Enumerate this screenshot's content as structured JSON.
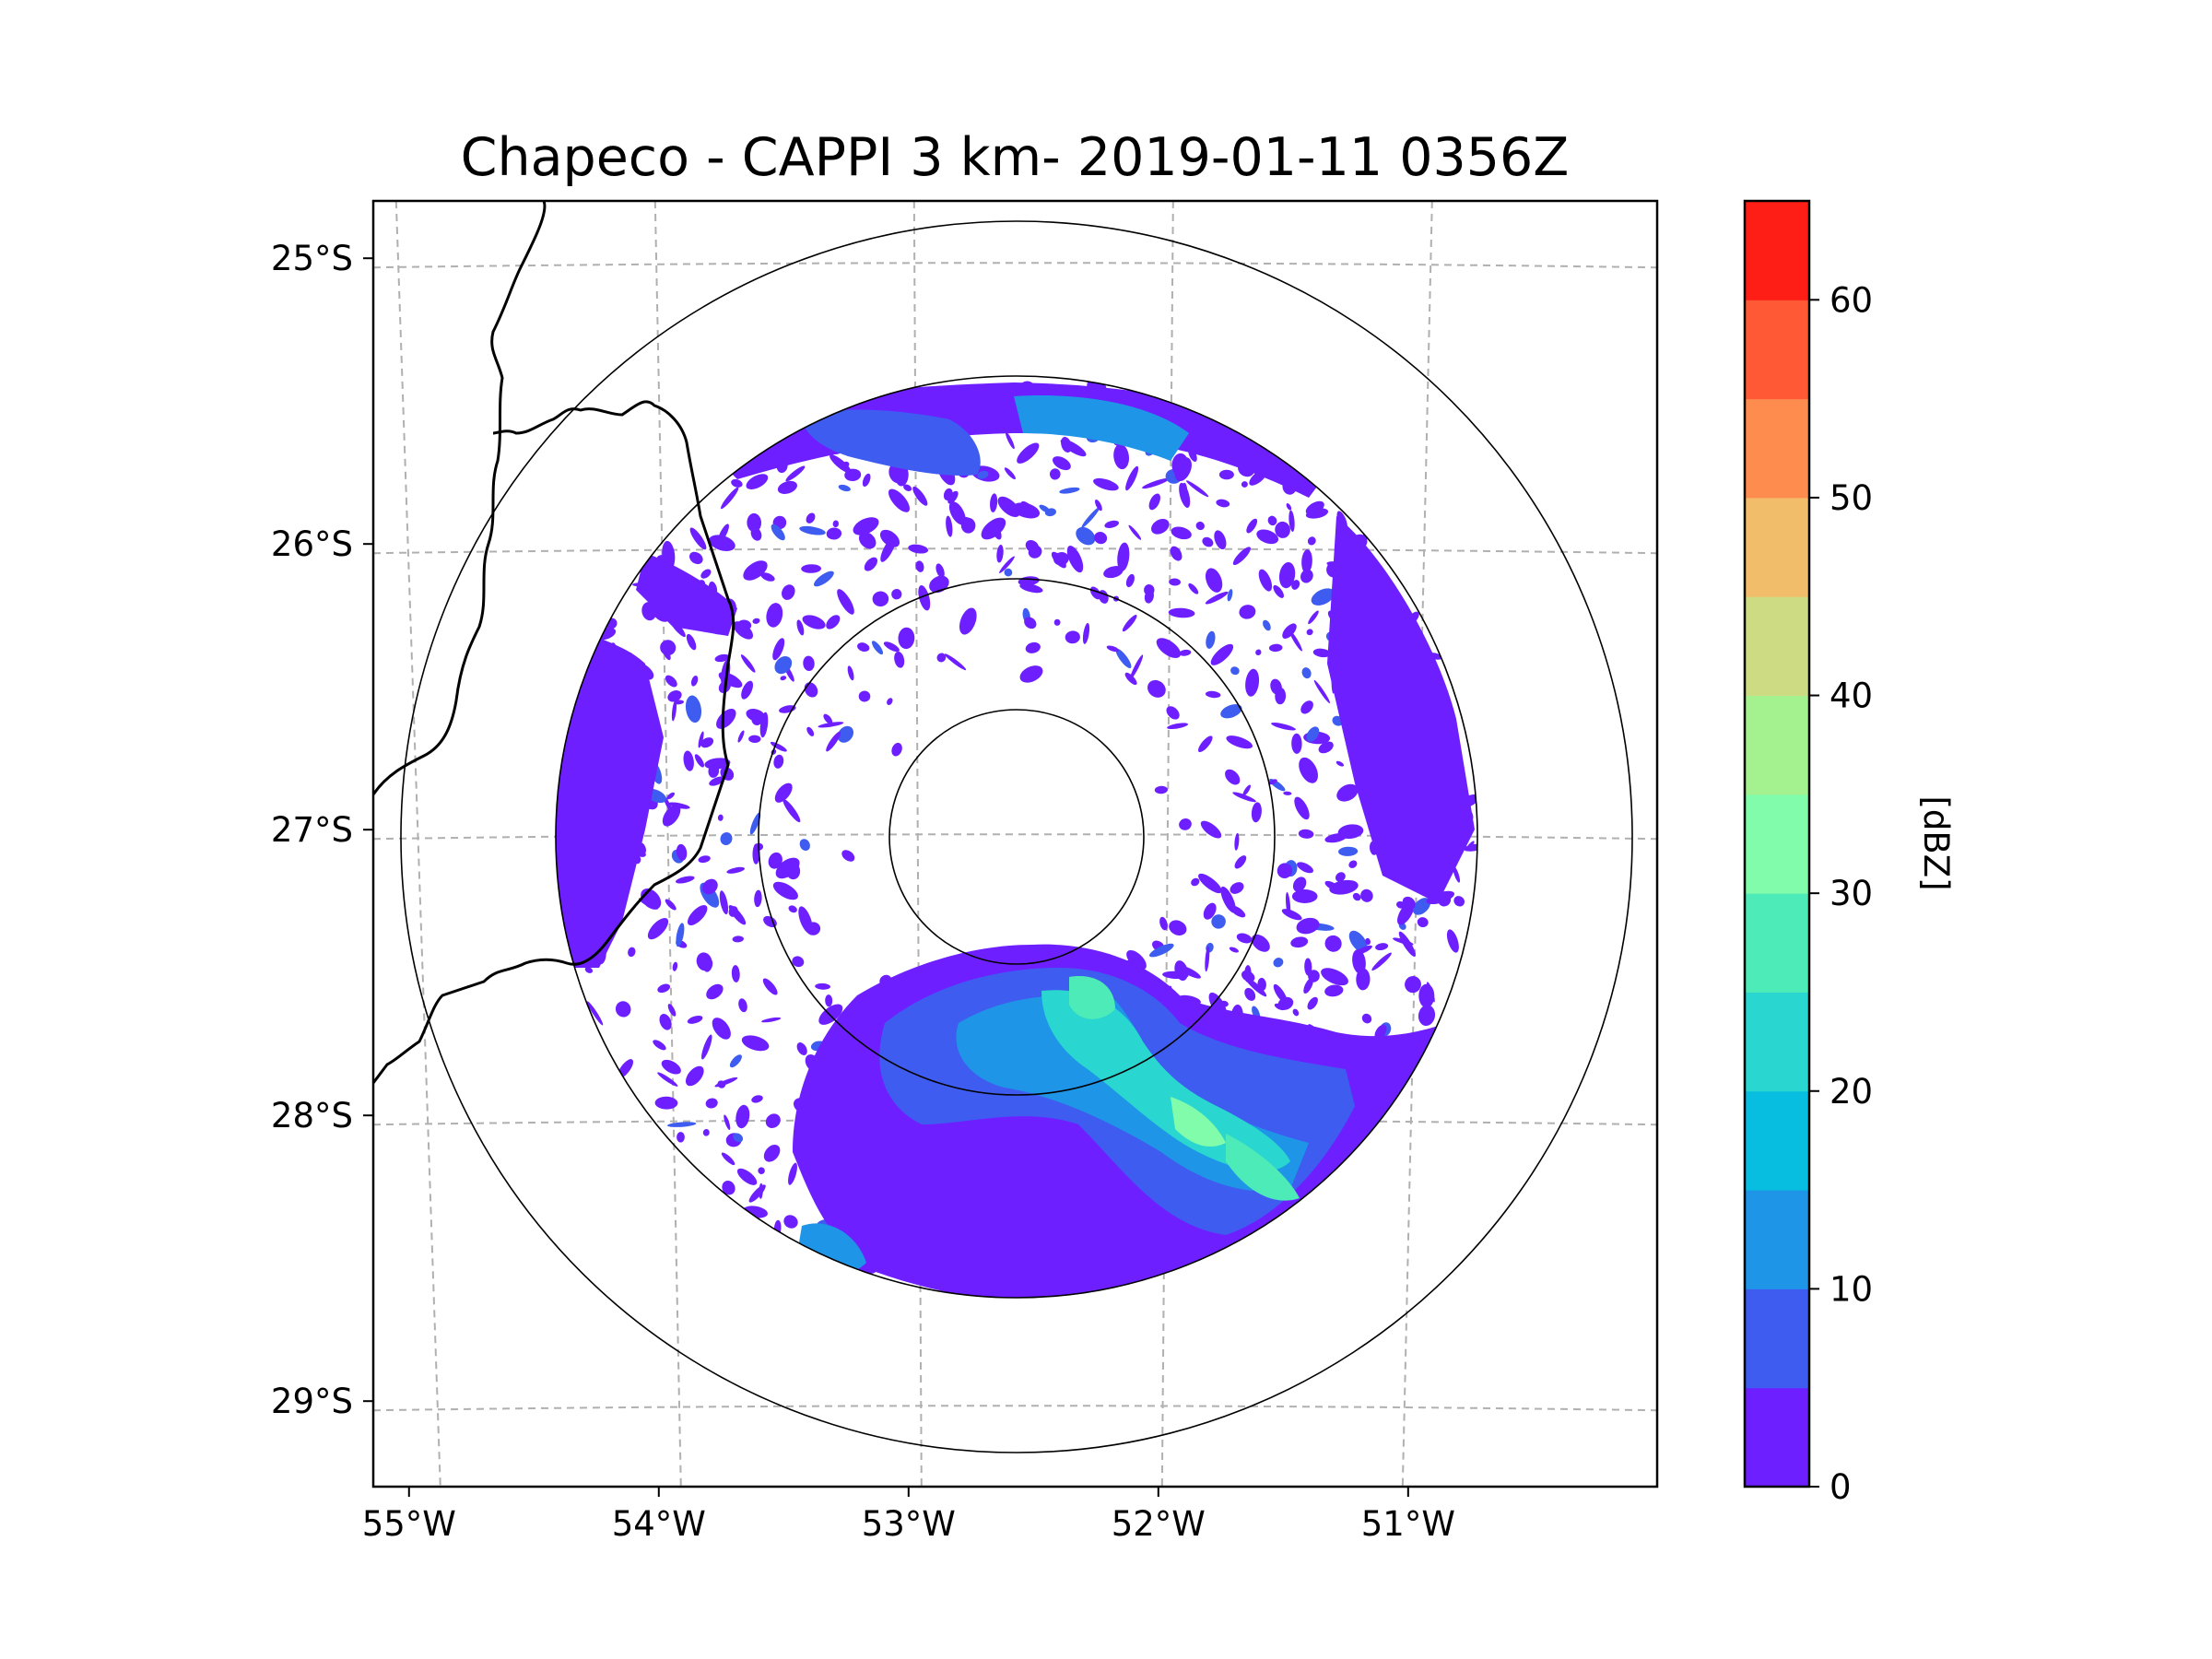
{
  "title": "Chapeco - CAPPI 3 km- 2019-01-11 0356Z",
  "chart_data": {
    "type": "heatmap",
    "title": "Chapeco - CAPPI 3 km- 2019-01-11 0356Z",
    "variable": "reflectivity",
    "projection": "map",
    "lon_range": [
      -55.18,
      -50.04
    ],
    "lat_range": [
      -29.28,
      -24.78
    ],
    "radar_center": {
      "lon": -52.6,
      "lat": -27.03
    },
    "range_rings_km": [
      50,
      100,
      180,
      240
    ],
    "x_ticks": [
      "55°W",
      "54°W",
      "53°W",
      "52°W",
      "51°W"
    ],
    "x_tick_values": [
      -55,
      -54,
      -53,
      -52,
      -51
    ],
    "y_ticks": [
      "25°S",
      "26°S",
      "27°S",
      "28°S",
      "29°S"
    ],
    "y_tick_values": [
      -25,
      -26,
      -27,
      -28,
      -29
    ],
    "grid": true,
    "colorbar": {
      "label": "[dBZ]",
      "min": 0,
      "max": 65,
      "ticks": [
        "0",
        "10",
        "20",
        "30",
        "40",
        "50",
        "60"
      ],
      "tick_values": [
        0,
        10,
        20,
        30,
        40,
        50,
        60
      ],
      "levels": [
        {
          "from": 0,
          "to": 5,
          "color": "#6e1fff"
        },
        {
          "from": 5,
          "to": 10,
          "color": "#3e5cf0"
        },
        {
          "from": 10,
          "to": 15,
          "color": "#1f95e8"
        },
        {
          "from": 15,
          "to": 20,
          "color": "#07bde0"
        },
        {
          "from": 20,
          "to": 25,
          "color": "#2ad6d0"
        },
        {
          "from": 25,
          "to": 30,
          "color": "#4cebb8"
        },
        {
          "from": 30,
          "to": 35,
          "color": "#80fcaa"
        },
        {
          "from": 35,
          "to": 40,
          "color": "#a4f28f"
        },
        {
          "from": 40,
          "to": 45,
          "color": "#cddb82"
        },
        {
          "from": 45,
          "to": 50,
          "color": "#f2bd6b"
        },
        {
          "from": 50,
          "to": 55,
          "color": "#ff8c4f"
        },
        {
          "from": 55,
          "to": 60,
          "color": "#ff5a35"
        },
        {
          "from": 60,
          "to": 65,
          "color": "#ff1e15"
        }
      ]
    },
    "echo_regions": [
      {
        "name": "southern rain band",
        "dbz_range": [
          0,
          35
        ],
        "location": "south / southeast of radar"
      },
      {
        "name": "northern echoes",
        "dbz_range": [
          0,
          15
        ],
        "location": "north of radar"
      },
      {
        "name": "scattered clutter",
        "dbz_range": [
          0,
          5
        ],
        "location": "throughout coverage"
      }
    ]
  }
}
